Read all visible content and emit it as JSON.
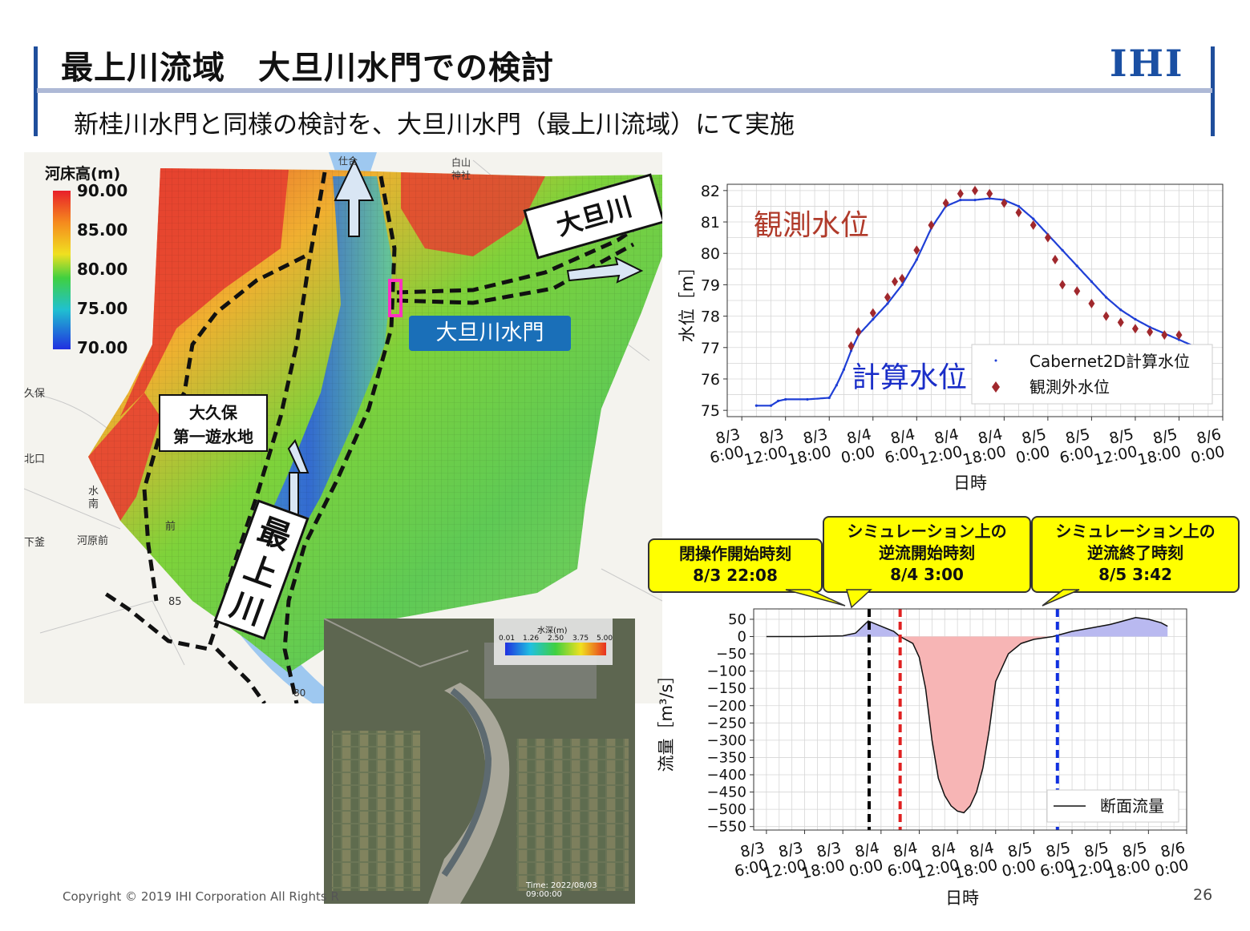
{
  "header": {
    "title": "最上川流域　大旦川水門での検討",
    "subtitle": "新桂川水門と同様の検討を、大旦川水門（最上川流域）にて実施",
    "logo": "IHI"
  },
  "footer": {
    "copyright": "Copyright © 2019 IHI Corporation All Rights R",
    "page_number": "26"
  },
  "colors": {
    "brand_blue": "#1f4e9c",
    "calc_series": "#1f3fd6",
    "obs_series": "#a0282d",
    "callout_yellow": "#ffff00",
    "positive_fill": "#b9b9f0",
    "negative_fill": "#f7b5b5"
  },
  "map": {
    "legend_title": "河床高(m)",
    "legend_ticks": [
      "90.00",
      "85.00",
      "80.00",
      "75.00",
      "70.00"
    ],
    "label_odan_river": "大旦川",
    "label_gate": "大旦川水門",
    "label_retention_line1": "大久保",
    "label_retention_line2": "第一遊水地",
    "label_mogami_char1": "最",
    "label_mogami_char2": "上",
    "label_mogami_char3": "川",
    "place_labels": [
      "白山",
      "神社",
      "久保",
      "北口",
      "水",
      "南",
      "前",
      "河原前",
      "下釜",
      "85",
      "80",
      "仕合"
    ]
  },
  "satellite": {
    "legend_title": "水深(m)",
    "legend_ticks": [
      "0.01",
      "1.26",
      "2.50",
      "3.75",
      "5.00"
    ],
    "timestamp": "Time: 2022/08/03 09:00:00"
  },
  "chart_labels": {
    "obs_annotation": "観測水位",
    "calc_annotation": "計算水位"
  },
  "callouts": [
    {
      "line1": "閉操作開始時刻",
      "line2": "8/3 22:08"
    },
    {
      "line1": "シミュレーション上の",
      "line2": "逆流開始時刻",
      "line3": "8/4 3:00"
    },
    {
      "line1": "シミュレーション上の",
      "line2": "逆流終了時刻",
      "line3": "8/5 3:42"
    }
  ],
  "chart_data": [
    {
      "type": "scatter",
      "xlabel": "日時",
      "ylabel": "水位［m］",
      "x_unit": "hours since 8/3 0:00 as printed tick labels",
      "x_ticks": [
        "8/3 6:00",
        "8/3 12:00",
        "8/3 18:00",
        "8/4 0:00",
        "8/4 6:00",
        "8/4 12:00",
        "8/4 18:00",
        "8/5 0:00",
        "8/5 6:00",
        "8/5 12:00",
        "8/5 18:00",
        "8/6 0:00"
      ],
      "y_ticks": [
        75,
        76,
        77,
        78,
        79,
        80,
        81,
        82
      ],
      "ylim": [
        74.8,
        82.2
      ],
      "grid": true,
      "legend_position": "lower-right",
      "series": [
        {
          "name": "Cabernet2D計算水位",
          "x": [
            "8/3 8:00",
            "8/3 10:00",
            "8/3 11:00",
            "8/3 12:00",
            "8/3 15:00",
            "8/3 18:00",
            "8/3 19:00",
            "8/3 20:00",
            "8/3 21:00",
            "8/3 22:00",
            "8/4 0:00",
            "8/4 2:00",
            "8/4 4:00",
            "8/4 6:00",
            "8/4 8:00",
            "8/4 10:00",
            "8/4 12:00",
            "8/4 14:00",
            "8/4 16:00",
            "8/4 18:00",
            "8/4 20:00",
            "8/4 22:00",
            "8/5 0:00",
            "8/5 2:00",
            "8/5 4:00",
            "8/5 6:00",
            "8/5 8:00",
            "8/5 10:00",
            "8/5 12:00",
            "8/5 14:00",
            "8/5 16:00",
            "8/5 18:00",
            "8/5 20:00",
            "8/5 21:00"
          ],
          "y": [
            75.15,
            75.15,
            75.3,
            75.35,
            75.35,
            75.4,
            75.8,
            76.3,
            76.9,
            77.4,
            77.9,
            78.4,
            79.0,
            79.8,
            80.8,
            81.5,
            81.7,
            81.7,
            81.75,
            81.7,
            81.5,
            81.1,
            80.6,
            80.1,
            79.6,
            79.1,
            78.6,
            78.2,
            77.9,
            77.65,
            77.45,
            77.25,
            77.05,
            76.95
          ]
        },
        {
          "name": "観測外水位",
          "x": [
            "8/3 21:00",
            "8/3 22:00",
            "8/4 0:00",
            "8/4 2:00",
            "8/4 3:00",
            "8/4 4:00",
            "8/4 6:00",
            "8/4 8:00",
            "8/4 10:00",
            "8/4 12:00",
            "8/4 14:00",
            "8/4 16:00",
            "8/4 18:00",
            "8/4 20:00",
            "8/4 22:00",
            "8/5 0:00",
            "8/5 1:00",
            "8/5 2:00",
            "8/5 4:00",
            "8/5 6:00",
            "8/5 8:00",
            "8/5 10:00",
            "8/5 12:00",
            "8/5 14:00",
            "8/5 16:00",
            "8/5 18:00"
          ],
          "y": [
            77.05,
            77.5,
            78.1,
            78.6,
            79.1,
            79.2,
            80.1,
            80.9,
            81.6,
            81.9,
            82.0,
            81.9,
            81.6,
            81.3,
            80.9,
            80.5,
            79.8,
            79.0,
            78.8,
            78.4,
            78.0,
            77.8,
            77.6,
            77.5,
            77.4,
            77.4
          ]
        }
      ]
    },
    {
      "type": "area",
      "xlabel": "日時",
      "ylabel": "流量［m³/s］",
      "x_ticks": [
        "8/3 6:00",
        "8/3 12:00",
        "8/3 18:00",
        "8/4 0:00",
        "8/4 6:00",
        "8/4 12:00",
        "8/4 18:00",
        "8/5 0:00",
        "8/5 6:00",
        "8/5 12:00",
        "8/5 18:00",
        "8/6 0:00"
      ],
      "y_ticks": [
        50,
        0,
        -50,
        -100,
        -150,
        -200,
        -250,
        -300,
        -350,
        -400,
        -450,
        -500,
        -550
      ],
      "ylim": [
        -560,
        80
      ],
      "grid": true,
      "legend_position": "lower-right",
      "series": [
        {
          "name": "断面流量",
          "x": [
            "8/3 6:00",
            "8/3 12:00",
            "8/3 18:00",
            "8/3 20:00",
            "8/3 22:00",
            "8/4 0:00",
            "8/4 2:00",
            "8/4 3:00",
            "8/4 5:00",
            "8/4 6:00",
            "8/4 7:00",
            "8/4 8:00",
            "8/4 9:00",
            "8/4 10:00",
            "8/4 11:00",
            "8/4 12:00",
            "8/4 13:00",
            "8/4 14:00",
            "8/4 15:00",
            "8/4 16:00",
            "8/4 17:00",
            "8/4 18:00",
            "8/4 20:00",
            "8/4 22:00",
            "8/5 0:00",
            "8/5 3:00",
            "8/5 6:00",
            "8/5 9:00",
            "8/5 12:00",
            "8/5 14:00",
            "8/5 16:00",
            "8/5 18:00",
            "8/5 20:00",
            "8/5 21:00"
          ],
          "y": [
            0,
            0,
            2,
            10,
            45,
            30,
            15,
            0,
            -20,
            -60,
            -150,
            -300,
            -410,
            -460,
            -490,
            -505,
            -510,
            -490,
            -450,
            -380,
            -270,
            -130,
            -50,
            -20,
            -8,
            0,
            15,
            25,
            35,
            45,
            55,
            50,
            40,
            30
          ]
        }
      ],
      "vlines": [
        {
          "x": "8/3 22:08",
          "color": "#000000"
        },
        {
          "x": "8/4 3:00",
          "color": "#e02020"
        },
        {
          "x": "8/5 3:42",
          "color": "#1030e0"
        }
      ]
    }
  ]
}
